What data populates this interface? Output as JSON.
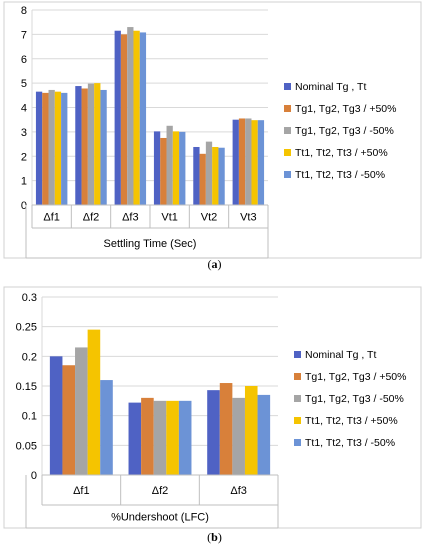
{
  "series_colors": [
    "#4F62C4",
    "#D8803A",
    "#A5A5A5",
    "#F5C400",
    "#6C93D6"
  ],
  "chart_data": [
    {
      "type": "bar",
      "panel_label": "(a)",
      "panel_letter": "a",
      "xlabel": "Settling Time (Sec)",
      "ylabel": "",
      "ylim": [
        0,
        8
      ],
      "yticks": [
        0,
        1,
        2,
        3,
        4,
        5,
        6,
        7,
        8
      ],
      "ytick_labels": [
        "0",
        "1",
        "2",
        "3",
        "4",
        "5",
        "6",
        "7",
        "8"
      ],
      "grid": true,
      "legend_position": "right",
      "categories": [
        "Δf1",
        "Δf2",
        "Δf3",
        "Vt1",
        "Vt2",
        "Vt3"
      ],
      "series": [
        {
          "name": "Nominal Tg , Tt",
          "values": [
            4.65,
            4.88,
            7.15,
            3.02,
            2.38,
            3.5
          ]
        },
        {
          "name": "Tg1, Tg2, Tg3 / +50%",
          "values": [
            4.6,
            4.78,
            7.0,
            2.75,
            2.1,
            3.55
          ]
        },
        {
          "name": "Tg1, Tg2, Tg3 / -50%",
          "values": [
            4.72,
            4.98,
            7.3,
            3.25,
            2.6,
            3.55
          ]
        },
        {
          "name": "Tt1, Tt2, Tt3 / +50%",
          "values": [
            4.65,
            5.0,
            7.15,
            3.02,
            2.38,
            3.48
          ]
        },
        {
          "name": "Tt1, Tt2, Tt3 / -50%",
          "values": [
            4.6,
            4.72,
            7.08,
            3.0,
            2.35,
            3.48
          ]
        }
      ]
    },
    {
      "type": "bar",
      "panel_label": "(b)",
      "panel_letter": "b",
      "xlabel": "%Undershoot (LFC)",
      "ylabel": "",
      "ylim": [
        0,
        0.3
      ],
      "yticks": [
        0,
        0.05,
        0.1,
        0.15,
        0.2,
        0.25,
        0.3
      ],
      "ytick_labels": [
        "0",
        "0.05",
        "0.1",
        "0.15",
        "0.2",
        "0.25",
        "0.3"
      ],
      "grid": true,
      "legend_position": "right",
      "categories": [
        "Δf1",
        "Δf2",
        "Δf3"
      ],
      "series": [
        {
          "name": "Nominal Tg , Tt",
          "values": [
            0.2,
            0.122,
            0.143
          ]
        },
        {
          "name": "Tg1, Tg2, Tg3 / +50%",
          "values": [
            0.185,
            0.13,
            0.155
          ]
        },
        {
          "name": "Tg1, Tg2, Tg3 / -50%",
          "values": [
            0.215,
            0.125,
            0.13
          ]
        },
        {
          "name": "Tt1, Tt2, Tt3 / +50%",
          "values": [
            0.245,
            0.125,
            0.15
          ]
        },
        {
          "name": "Tt1, Tt2, Tt3 / -50%",
          "values": [
            0.16,
            0.125,
            0.135
          ]
        }
      ]
    }
  ]
}
